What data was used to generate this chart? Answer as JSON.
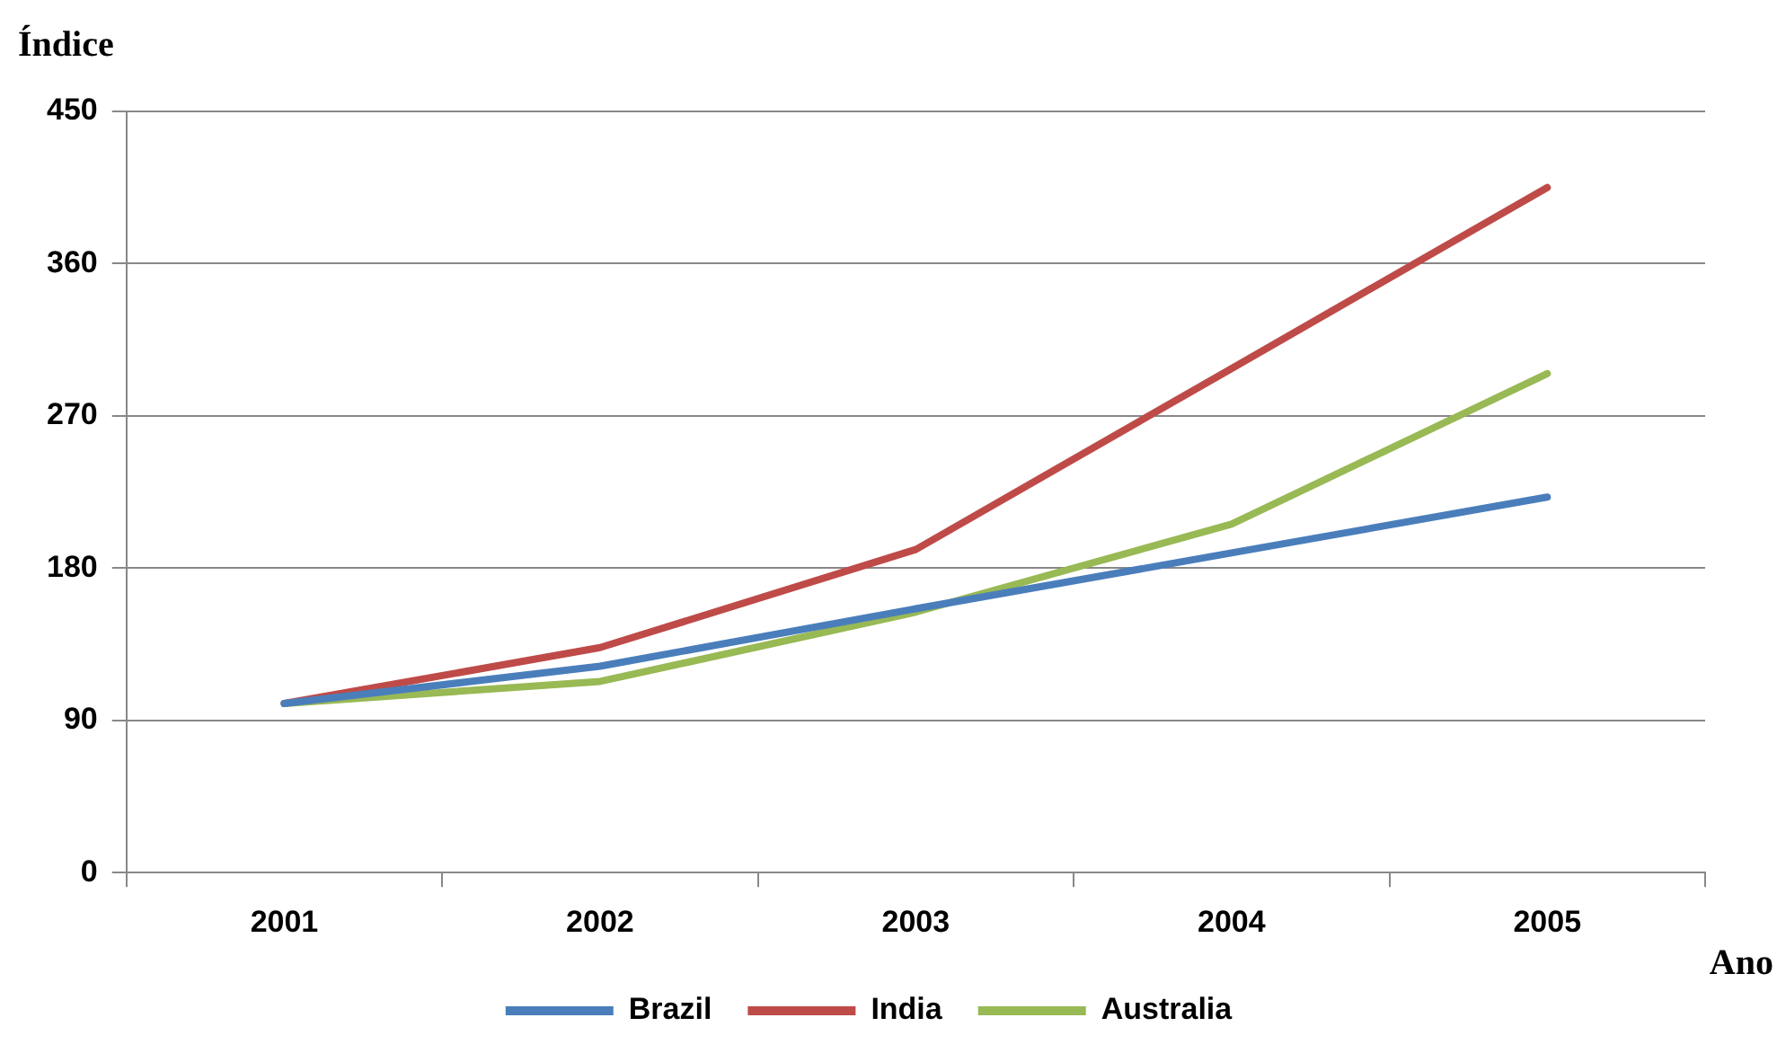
{
  "chart_data": {
    "type": "line",
    "xlabel": "Ano",
    "ylabel": "Índice",
    "categories": [
      "2001",
      "2002",
      "2003",
      "2004",
      "2005"
    ],
    "series": [
      {
        "name": "Brazil",
        "color": "#4a7ebb",
        "values": [
          100,
          122,
          156,
          189,
          222
        ]
      },
      {
        "name": "India",
        "color": "#be4b48",
        "values": [
          100,
          133,
          191,
          298,
          405
        ]
      },
      {
        "name": "Australia",
        "color": "#98b954",
        "values": [
          100,
          113,
          154,
          206,
          295
        ]
      }
    ],
    "ylim": [
      0,
      450
    ],
    "yticks": [
      0,
      90,
      180,
      270,
      360,
      450
    ],
    "grid": "y",
    "legend": "bottom",
    "marker": "none",
    "line_style": "solid"
  }
}
